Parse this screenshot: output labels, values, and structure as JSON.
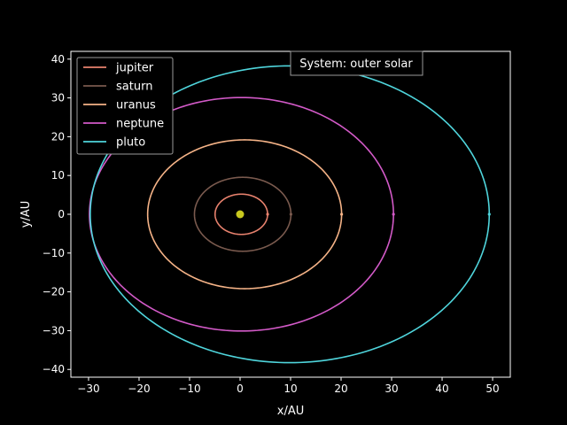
{
  "chart_data": {
    "type": "line",
    "title": "",
    "xlabel": "x/AU",
    "ylabel": "y/AU",
    "xlim": [
      -33.5,
      53.5
    ],
    "ylim": [
      -42,
      42
    ],
    "x_ticks": [
      -30,
      -20,
      -10,
      0,
      10,
      20,
      30,
      40,
      50
    ],
    "y_ticks": [
      -40,
      -30,
      -20,
      -10,
      0,
      10,
      20,
      30,
      40
    ],
    "grid": false,
    "legend_position": "top-left",
    "annotation": "System: outer solar",
    "sun": {
      "x": 0,
      "y": 0,
      "color": "#c8c81e"
    },
    "series": [
      {
        "name": "jupiter",
        "color": "#e8826e",
        "a": 5.2,
        "e": 0.048
      },
      {
        "name": "saturn",
        "color": "#7a5a4e",
        "a": 9.55,
        "e": 0.054
      },
      {
        "name": "uranus",
        "color": "#f5b387",
        "a": 19.2,
        "e": 0.047
      },
      {
        "name": "neptune",
        "color": "#d35ac8",
        "a": 30.1,
        "e": 0.009
      },
      {
        "name": "pluto",
        "color": "#4fd5dc",
        "a": 39.5,
        "e": 0.249
      }
    ]
  }
}
